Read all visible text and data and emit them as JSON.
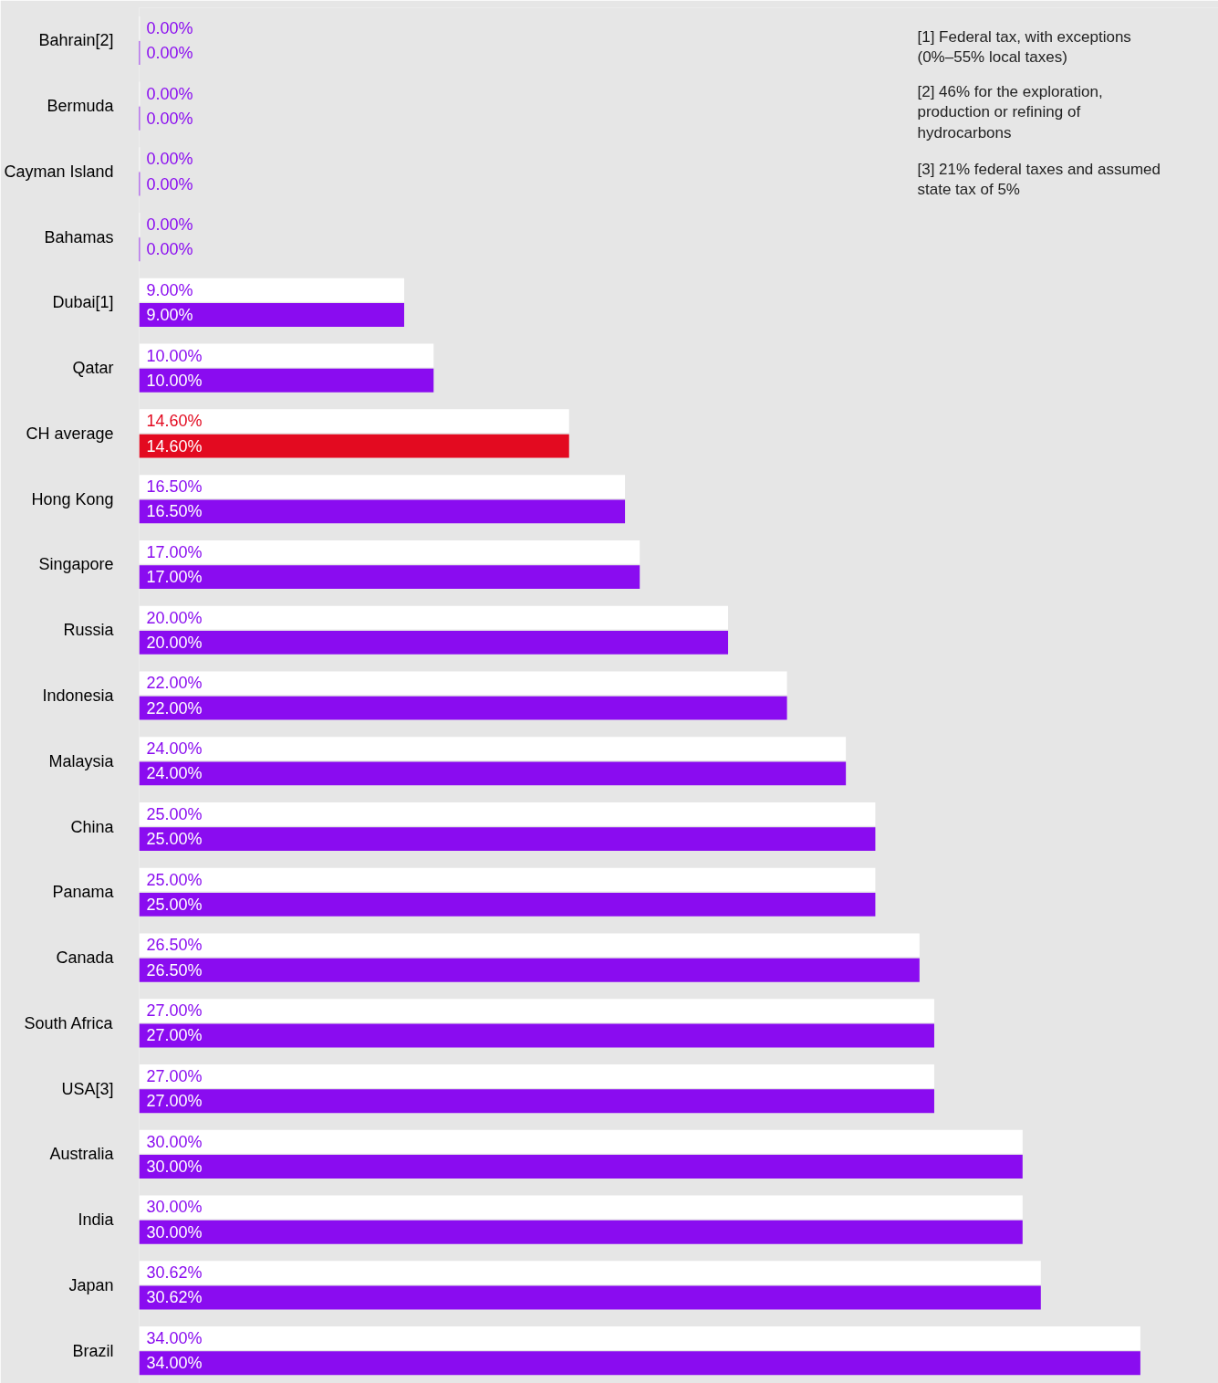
{
  "chart_data": {
    "type": "bar",
    "orientation": "horizontal",
    "categories": [
      "Bahrain[2]",
      "Bermuda",
      "Cayman Island",
      "Bahamas",
      "Dubai[1]",
      "Qatar",
      "CH average",
      "Hong Kong",
      "Singapore",
      "Russia",
      "Indonesia",
      "Malaysia",
      "China",
      "Panama",
      "Canada",
      "South Africa",
      "USA[3]",
      "Australia",
      "India",
      "Japan",
      "Brazil"
    ],
    "series": [
      {
        "color": "#ffffff",
        "values": [
          0,
          0,
          0,
          0,
          9,
          10,
          14.6,
          16.5,
          17,
          20,
          22,
          24,
          25,
          25,
          26.5,
          27,
          27,
          30,
          30,
          30.62,
          34
        ],
        "value_labels": [
          "0.00%",
          "0.00%",
          "0.00%",
          "0.00%",
          "9.00%",
          "10.00%",
          "14.60%",
          "16.50%",
          "17.00%",
          "20.00%",
          "22.00%",
          "24.00%",
          "25.00%",
          "25.00%",
          "26.50%",
          "27.00%",
          "27.00%",
          "30.00%",
          "30.00%",
          "30.62%",
          "34.00%"
        ]
      },
      {
        "colors": [
          "#8a0cf0",
          "#8a0cf0",
          "#8a0cf0",
          "#8a0cf0",
          "#8a0cf0",
          "#8a0cf0",
          "#e30a20",
          "#8a0cf0",
          "#8a0cf0",
          "#8a0cf0",
          "#8a0cf0",
          "#8a0cf0",
          "#8a0cf0",
          "#8a0cf0",
          "#8a0cf0",
          "#8a0cf0",
          "#8a0cf0",
          "#8a0cf0",
          "#8a0cf0",
          "#8a0cf0",
          "#8a0cf0"
        ],
        "values": [
          0,
          0,
          0,
          0,
          9,
          10,
          14.6,
          16.5,
          17,
          20,
          22,
          24,
          25,
          25,
          26.5,
          27,
          27,
          30,
          30,
          30.62,
          34
        ],
        "value_labels": [
          "0.00%",
          "0.00%",
          "0.00%",
          "0.00%",
          "9.00%",
          "10.00%",
          "14.60%",
          "16.50%",
          "17.00%",
          "20.00%",
          "22.00%",
          "24.00%",
          "25.00%",
          "25.00%",
          "26.50%",
          "27.00%",
          "27.00%",
          "30.00%",
          "30.00%",
          "30.62%",
          "34.00%"
        ]
      }
    ],
    "annotations": [
      "[1] Federal tax, with exceptions (0%–55% local taxes)",
      "[2] 46% for the exploration, production or refining of hydrocarbons",
      "[3] 21% federal taxes and assumed state tax of 5%"
    ],
    "tick_labels": "y"
  }
}
